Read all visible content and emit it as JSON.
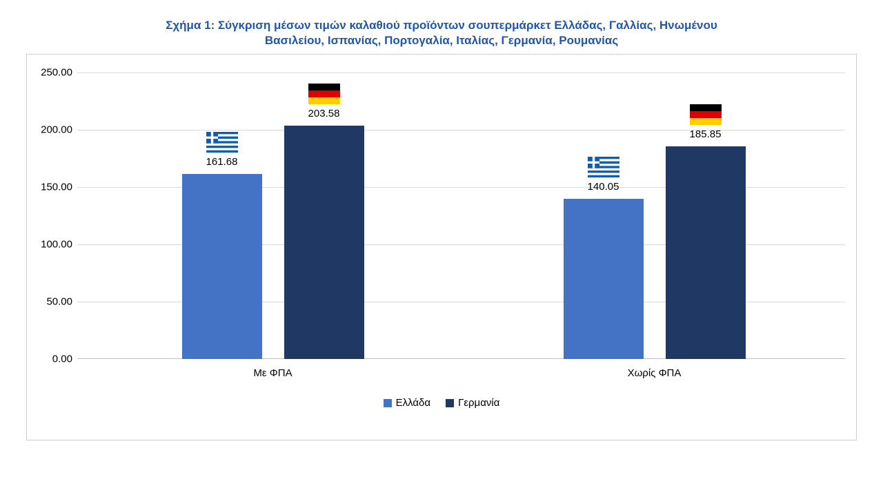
{
  "title": {
    "line1": "Σχήμα 1: Σύγκριση μέσων τιμών καλαθιού προϊόντων σουπερμάρκετ Ελλάδας, Γαλλίας, Ηνωμένου",
    "line2": "Βασιλείου, Ισπανίας, Πορτογαλία, Ιταλίας, Γερμανία, Ρουμανίας"
  },
  "chart_data": {
    "type": "bar",
    "title": "Σχήμα 1: Σύγκριση μέσων τιμών καλαθιού προϊόντων σουπερμάρκετ Ελλάδας, Γαλλίας, Ηνωμένου Βασιλείου, Ισπανίας, Πορτογαλία, Ιταλίας, Γερμανία, Ρουμανίας",
    "categories": [
      "Με ΦΠΑ",
      "Χωρίς ΦΠΑ"
    ],
    "series": [
      {
        "name": "Ελλάδα",
        "color": "#4472C4",
        "flag_icon": "greek-flag",
        "values": [
          161.68,
          140.05
        ]
      },
      {
        "name": "Γερμανία",
        "color": "#203864",
        "flag_icon": "german-flag",
        "values": [
          203.58,
          185.85
        ]
      }
    ],
    "xlabel": "",
    "ylabel": "",
    "ylim": [
      0,
      250
    ],
    "yticks": [
      "250.00",
      "200.00",
      "150.00",
      "100.00",
      "50.00",
      "0.00"
    ],
    "grid": true,
    "legend_position": "bottom"
  },
  "colors": {
    "title_blue": "#2057A7",
    "greece_bar": "#4472C4",
    "germany_bar": "#203864",
    "gridline": "#d9d9d9",
    "greek_flag_blue": "#0D5EAF",
    "german_flag_black": "#000000",
    "german_flag_red": "#DD0000",
    "german_flag_gold": "#FFCE00"
  }
}
